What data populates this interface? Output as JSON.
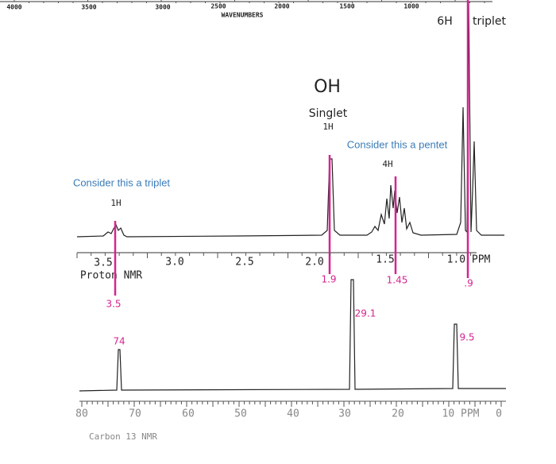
{
  "wavenumber_axis": {
    "labels": [
      "4000",
      "3500",
      "3000",
      "2500",
      "2000",
      "1500",
      "1000"
    ],
    "title": "WAVENUMBERS"
  },
  "annotations": {
    "six_h": "6H",
    "triplet": "triplet",
    "oh": "OH",
    "singlet": "Singlet",
    "oh_h": "1H",
    "pentet_note": "Consider this a pentet",
    "four_h": "4H",
    "triplet_note": "Consider this a triplet",
    "one_h": "1H"
  },
  "proton_nmr": {
    "axis_labels": [
      "3.5",
      "3.0",
      "2.5",
      "2.0",
      "1.5",
      "1.0 PPM"
    ],
    "title": "Proton NMR",
    "shift_marks": [
      "1.9",
      "1.45",
      ".9",
      "3.5"
    ]
  },
  "carbon_nmr": {
    "axis_labels": [
      "80",
      "70",
      "60",
      "50",
      "40",
      "30",
      "20",
      "10 PPM",
      "0"
    ],
    "title": "Carbon 13 NMR",
    "shift_marks": [
      "74",
      "29.1",
      "9.5"
    ]
  }
}
